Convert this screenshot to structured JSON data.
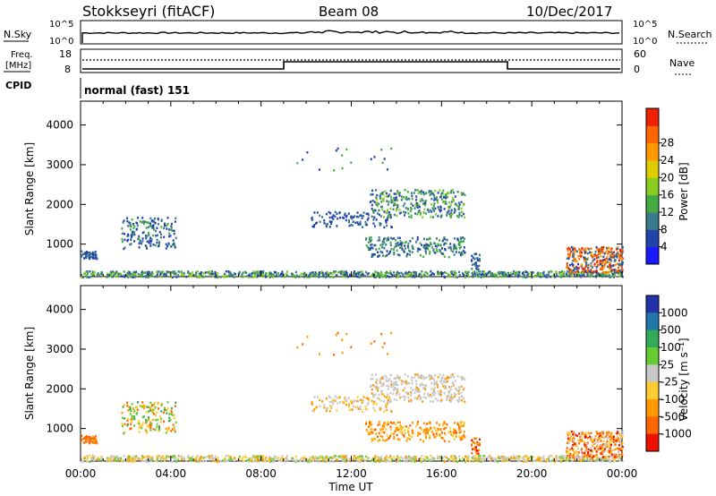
{
  "header": {
    "station": "Stokkseyri (fitACF)",
    "beam": "Beam 08",
    "date": "10/Dec/2017"
  },
  "params": {
    "nsky_label": "N.Sky",
    "nsearch_label": "N.Search",
    "nsky_ticks": [
      "10^5",
      "10^0"
    ],
    "freq_label_1": "Freq.",
    "freq_label_2": "[MHz]",
    "freq_ticks": [
      "18",
      "8"
    ],
    "nave_label": "Nave",
    "nave_ticks": [
      "60",
      "0"
    ],
    "cpid_label": "CPID",
    "cpid_value": "normal (fast) 151"
  },
  "chart_data": [
    {
      "type": "heatmap",
      "name": "power",
      "ylabel": "Slant Range [km]",
      "yticks": [
        1000,
        2000,
        3000,
        4000
      ],
      "ylim": [
        180,
        4600
      ],
      "colorbar_label": "Power [dB]",
      "colorbar_ticks": [
        "4",
        "8",
        "12",
        "16",
        "20",
        "24",
        "28"
      ],
      "colorbar_colors": [
        "#1a1aff",
        "#2244aa",
        "#3a7a8a",
        "#44aa44",
        "#88cc22",
        "#ddcc00",
        "#ff9900",
        "#ff6600",
        "#ee2200"
      ]
    },
    {
      "type": "heatmap",
      "name": "velocity",
      "ylabel": "Slant Range [km]",
      "yticks": [
        1000,
        2000,
        3000,
        4000
      ],
      "ylim": [
        180,
        4600
      ],
      "colorbar_label": "Velocity [m s⁻¹]",
      "colorbar_ticks": [
        "1000",
        "500",
        "100",
        "25",
        "-25",
        "-100",
        "-500",
        "-1000"
      ],
      "colorbar_colors": [
        "#2233aa",
        "#2277aa",
        "#33aa55",
        "#66cc33",
        "#c8c8c8",
        "#ffcc33",
        "#ff9900",
        "#ff6600",
        "#ee1100"
      ]
    }
  ],
  "xaxis": {
    "label": "Time UT",
    "ticks": [
      "00:00",
      "04:00",
      "08:00",
      "12:00",
      "16:00",
      "20:00",
      "00:00"
    ]
  }
}
